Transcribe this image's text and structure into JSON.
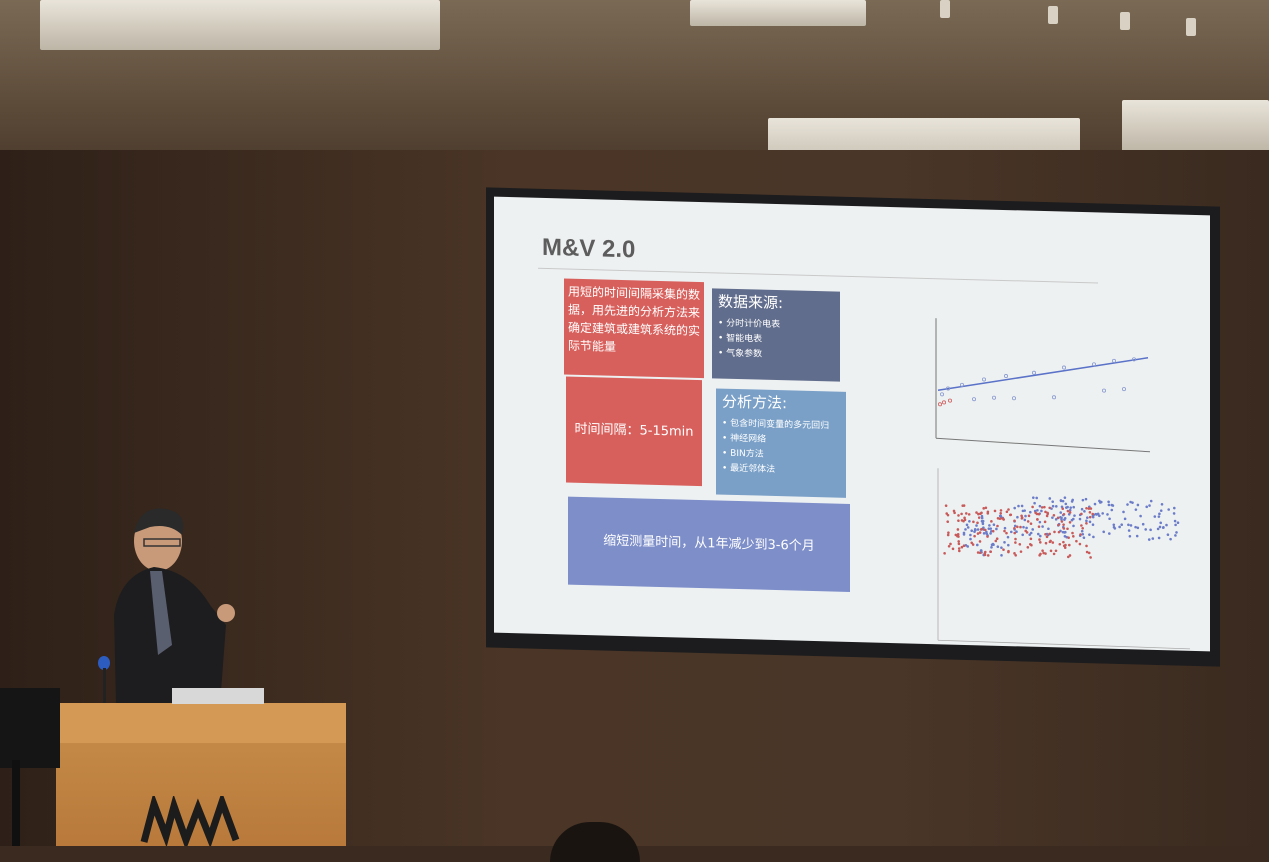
{
  "slide": {
    "title": "M&V 2.0",
    "box_definition": "用短的时间间隔采集的数据，用先进的分析方法来确定建筑或建筑系统的实际节能量",
    "box_data_source": {
      "heading": "数据来源:",
      "items": [
        "分时计价电表",
        "智能电表",
        "气象参数"
      ]
    },
    "box_interval": "时间间隔：5-15min",
    "box_methods": {
      "heading": "分析方法:",
      "items": [
        "包含时间变量的多元回归",
        "神经网络",
        "BIN方法",
        "最近邻体法"
      ]
    },
    "box_summary": "缩短测量时间，从1年减少到3-6个月"
  },
  "colors": {
    "red_box": "#d8605c",
    "navy_box": "#616d8c",
    "blue_box": "#7aa0c8",
    "lavender_box": "#7d8ec9",
    "slide_bg": "#eef1f2"
  }
}
